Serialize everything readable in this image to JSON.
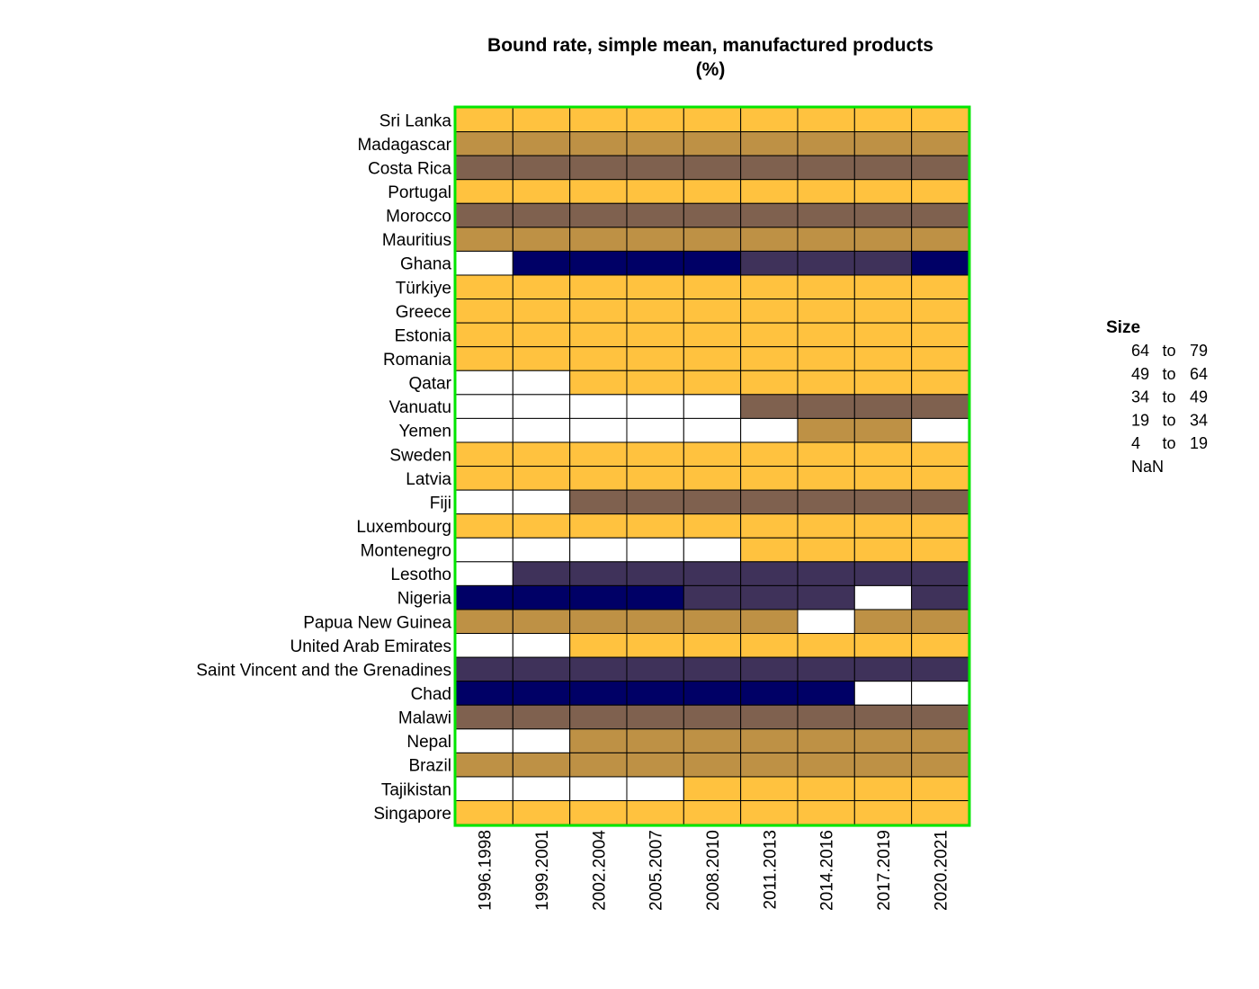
{
  "chart_data": {
    "type": "heatmap",
    "title": "Bound rate, simple mean, manufactured products",
    "subtitle": "(%)",
    "columns": [
      "1996.1998",
      "1999.2001",
      "2002.2004",
      "2005.2007",
      "2008.2010",
      "2011.2013",
      "2014.2016",
      "2017.2019",
      "2020.2021"
    ],
    "rows": [
      "Sri Lanka",
      "Madagascar",
      "Costa Rica",
      "Portugal",
      "Morocco",
      "Mauritius",
      "Ghana",
      "Türkiye",
      "Greece",
      "Estonia",
      "Romania",
      "Qatar",
      "Vanuatu",
      "Yemen",
      "Sweden",
      "Latvia",
      "Fiji",
      "Luxembourg",
      "Montenegro",
      "Lesotho",
      "Nigeria",
      "Papua New Guinea",
      "United Arab Emirates",
      "Saint Vincent and the Grenadines",
      "Chad",
      "Malawi",
      "Nepal",
      "Brazil",
      "Tajikistan",
      "Singapore"
    ],
    "bins": [
      "4 to 19",
      "19 to 34",
      "34 to 49",
      "49 to 64",
      "64 to 79"
    ],
    "legend": {
      "title": "Size",
      "placement": "right",
      "items": [
        {
          "label_from": "64",
          "label_to": "79",
          "sep": "to",
          "color": "#000066"
        },
        {
          "label_from": "49",
          "label_to": "64",
          "sep": "to",
          "color": "#3f325a"
        },
        {
          "label_from": "34",
          "label_to": "49",
          "sep": "to",
          "color": "#7f614f"
        },
        {
          "label_from": "19",
          "label_to": "34",
          "sep": "to",
          "color": "#be9145"
        },
        {
          "label_from": "4",
          "label_to": "19",
          "sep": "to",
          "color": "#ffc23f"
        },
        {
          "label_from": "NaN",
          "label_to": "",
          "sep": "",
          "color": "#ffffff"
        }
      ]
    },
    "colors": {
      "4 to 19": "#ffc23f",
      "19 to 34": "#be9145",
      "34 to 49": "#7f614f",
      "49 to 64": "#3f325a",
      "64 to 79": "#000066",
      "NaN": "#ffffff",
      "frame": "#00e600",
      "cell_border": "#000000"
    },
    "values": [
      [
        "4 to 19",
        "4 to 19",
        "4 to 19",
        "4 to 19",
        "4 to 19",
        "4 to 19",
        "4 to 19",
        "4 to 19",
        "4 to 19"
      ],
      [
        "19 to 34",
        "19 to 34",
        "19 to 34",
        "19 to 34",
        "19 to 34",
        "19 to 34",
        "19 to 34",
        "19 to 34",
        "19 to 34"
      ],
      [
        "34 to 49",
        "34 to 49",
        "34 to 49",
        "34 to 49",
        "34 to 49",
        "34 to 49",
        "34 to 49",
        "34 to 49",
        "34 to 49"
      ],
      [
        "4 to 19",
        "4 to 19",
        "4 to 19",
        "4 to 19",
        "4 to 19",
        "4 to 19",
        "4 to 19",
        "4 to 19",
        "4 to 19"
      ],
      [
        "34 to 49",
        "34 to 49",
        "34 to 49",
        "34 to 49",
        "34 to 49",
        "34 to 49",
        "34 to 49",
        "34 to 49",
        "34 to 49"
      ],
      [
        "19 to 34",
        "19 to 34",
        "19 to 34",
        "19 to 34",
        "19 to 34",
        "19 to 34",
        "19 to 34",
        "19 to 34",
        "19 to 34"
      ],
      [
        "NaN",
        "64 to 79",
        "64 to 79",
        "64 to 79",
        "64 to 79",
        "49 to 64",
        "49 to 64",
        "49 to 64",
        "64 to 79"
      ],
      [
        "4 to 19",
        "4 to 19",
        "4 to 19",
        "4 to 19",
        "4 to 19",
        "4 to 19",
        "4 to 19",
        "4 to 19",
        "4 to 19"
      ],
      [
        "4 to 19",
        "4 to 19",
        "4 to 19",
        "4 to 19",
        "4 to 19",
        "4 to 19",
        "4 to 19",
        "4 to 19",
        "4 to 19"
      ],
      [
        "4 to 19",
        "4 to 19",
        "4 to 19",
        "4 to 19",
        "4 to 19",
        "4 to 19",
        "4 to 19",
        "4 to 19",
        "4 to 19"
      ],
      [
        "4 to 19",
        "4 to 19",
        "4 to 19",
        "4 to 19",
        "4 to 19",
        "4 to 19",
        "4 to 19",
        "4 to 19",
        "4 to 19"
      ],
      [
        "NaN",
        "NaN",
        "4 to 19",
        "4 to 19",
        "4 to 19",
        "4 to 19",
        "4 to 19",
        "4 to 19",
        "4 to 19"
      ],
      [
        "NaN",
        "NaN",
        "NaN",
        "NaN",
        "NaN",
        "34 to 49",
        "34 to 49",
        "34 to 49",
        "34 to 49"
      ],
      [
        "NaN",
        "NaN",
        "NaN",
        "NaN",
        "NaN",
        "NaN",
        "19 to 34",
        "19 to 34",
        "NaN"
      ],
      [
        "4 to 19",
        "4 to 19",
        "4 to 19",
        "4 to 19",
        "4 to 19",
        "4 to 19",
        "4 to 19",
        "4 to 19",
        "4 to 19"
      ],
      [
        "4 to 19",
        "4 to 19",
        "4 to 19",
        "4 to 19",
        "4 to 19",
        "4 to 19",
        "4 to 19",
        "4 to 19",
        "4 to 19"
      ],
      [
        "NaN",
        "NaN",
        "34 to 49",
        "34 to 49",
        "34 to 49",
        "34 to 49",
        "34 to 49",
        "34 to 49",
        "34 to 49"
      ],
      [
        "4 to 19",
        "4 to 19",
        "4 to 19",
        "4 to 19",
        "4 to 19",
        "4 to 19",
        "4 to 19",
        "4 to 19",
        "4 to 19"
      ],
      [
        "NaN",
        "NaN",
        "NaN",
        "NaN",
        "NaN",
        "4 to 19",
        "4 to 19",
        "4 to 19",
        "4 to 19"
      ],
      [
        "NaN",
        "49 to 64",
        "49 to 64",
        "49 to 64",
        "49 to 64",
        "49 to 64",
        "49 to 64",
        "49 to 64",
        "49 to 64"
      ],
      [
        "64 to 79",
        "64 to 79",
        "64 to 79",
        "64 to 79",
        "49 to 64",
        "49 to 64",
        "49 to 64",
        "NaN",
        "49 to 64"
      ],
      [
        "19 to 34",
        "19 to 34",
        "19 to 34",
        "19 to 34",
        "19 to 34",
        "19 to 34",
        "NaN",
        "19 to 34",
        "19 to 34"
      ],
      [
        "NaN",
        "NaN",
        "4 to 19",
        "4 to 19",
        "4 to 19",
        "4 to 19",
        "4 to 19",
        "4 to 19",
        "4 to 19"
      ],
      [
        "49 to 64",
        "49 to 64",
        "49 to 64",
        "49 to 64",
        "49 to 64",
        "49 to 64",
        "49 to 64",
        "49 to 64",
        "49 to 64"
      ],
      [
        "64 to 79",
        "64 to 79",
        "64 to 79",
        "64 to 79",
        "64 to 79",
        "64 to 79",
        "64 to 79",
        "NaN",
        "NaN"
      ],
      [
        "34 to 49",
        "34 to 49",
        "34 to 49",
        "34 to 49",
        "34 to 49",
        "34 to 49",
        "34 to 49",
        "34 to 49",
        "34 to 49"
      ],
      [
        "NaN",
        "NaN",
        "19 to 34",
        "19 to 34",
        "19 to 34",
        "19 to 34",
        "19 to 34",
        "19 to 34",
        "19 to 34"
      ],
      [
        "19 to 34",
        "19 to 34",
        "19 to 34",
        "19 to 34",
        "19 to 34",
        "19 to 34",
        "19 to 34",
        "19 to 34",
        "19 to 34"
      ],
      [
        "NaN",
        "NaN",
        "NaN",
        "NaN",
        "4 to 19",
        "4 to 19",
        "4 to 19",
        "4 to 19",
        "4 to 19"
      ],
      [
        "4 to 19",
        "4 to 19",
        "4 to 19",
        "4 to 19",
        "4 to 19",
        "4 to 19",
        "4 to 19",
        "4 to 19",
        "4 to 19"
      ]
    ]
  }
}
